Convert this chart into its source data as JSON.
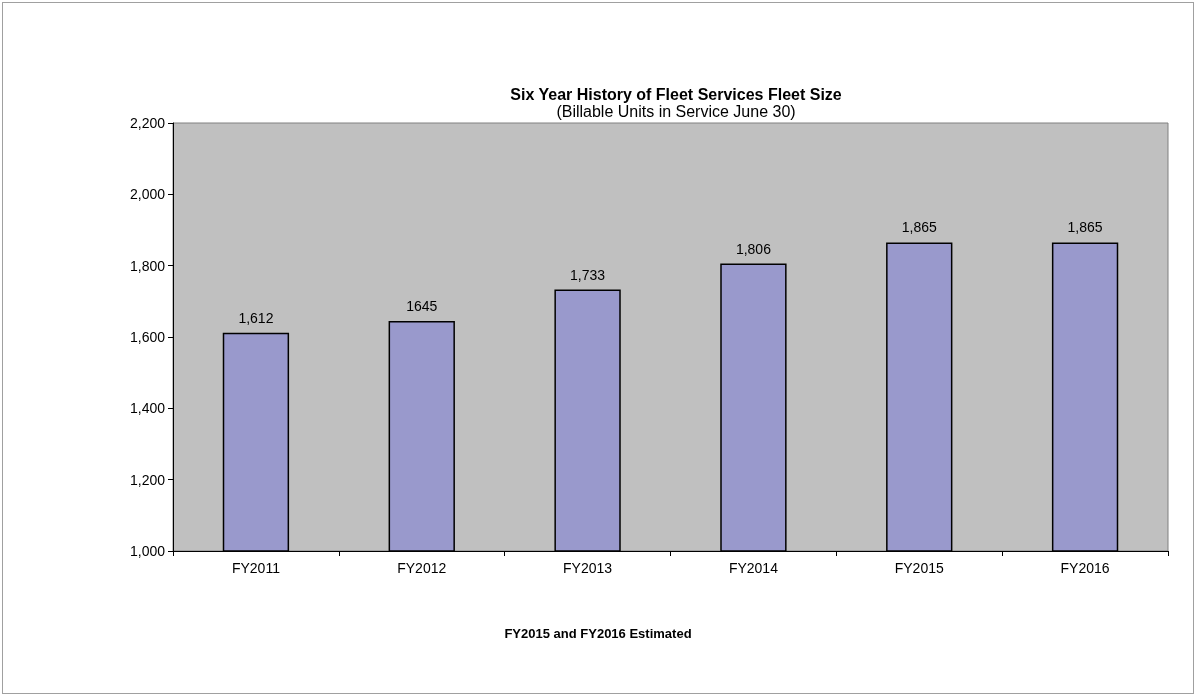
{
  "chart_data": {
    "type": "bar",
    "title": "Six Year History of Fleet Services Fleet Size",
    "subtitle": "(Billable Units in Service June 30)",
    "categories": [
      "FY2011",
      "FY2012",
      "FY2013",
      "FY2014",
      "FY2015",
      "FY2016"
    ],
    "values": [
      1612,
      1645,
      1733,
      1806,
      1865,
      1865
    ],
    "value_labels": [
      "1,612",
      "1645",
      "1,733",
      "1,806",
      "1,865",
      "1,865"
    ],
    "color": "#9999cc",
    "ylim": [
      1000,
      2200
    ],
    "yticks": [
      {
        "value": 1000,
        "label": "1,000"
      },
      {
        "value": 1200,
        "label": "1,200"
      },
      {
        "value": 1400,
        "label": "1,400"
      },
      {
        "value": 1600,
        "label": "1,600"
      },
      {
        "value": 1800,
        "label": "1,800"
      },
      {
        "value": 2000,
        "label": "2,000"
      },
      {
        "value": 2200,
        "label": "2,200"
      }
    ],
    "grid": false,
    "annotations": [
      "FY2015 and FY2016 Estimated"
    ]
  }
}
